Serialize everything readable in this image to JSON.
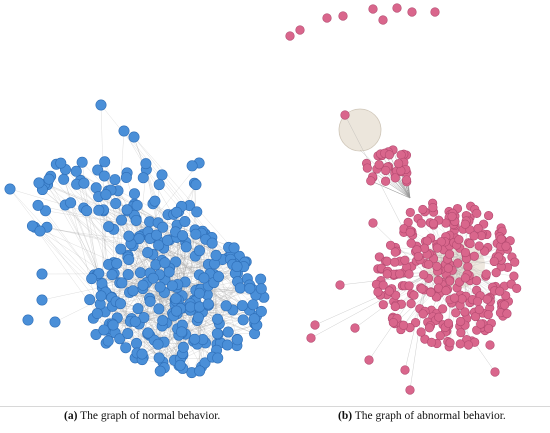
{
  "figure": {
    "panel_a": {
      "tag": "(a)",
      "caption": "The graph of normal behavior.",
      "node_color": "#4a8fd8",
      "node_stroke": "#2f6fb8",
      "edge_color": "#9a9a9a"
    },
    "panel_b": {
      "tag": "(b)",
      "caption": "The graph of abnormal behavior.",
      "node_color": "#d9668c",
      "node_stroke": "#b34a70",
      "edge_color": "#9a9a9a",
      "hub_color": "#ece6dc"
    }
  }
}
